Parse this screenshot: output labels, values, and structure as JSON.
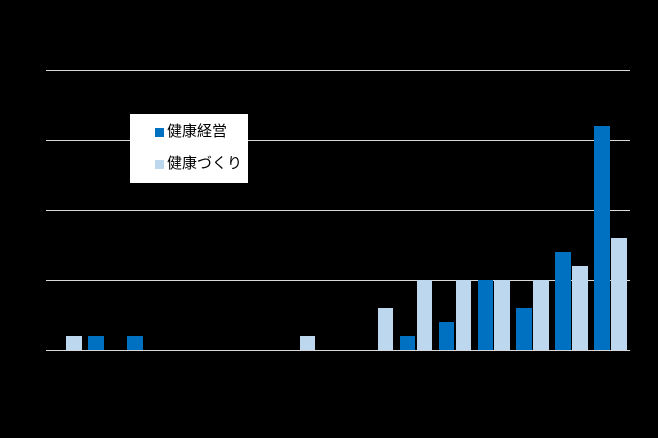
{
  "chart_data": {
    "type": "bar",
    "title": "",
    "xlabel": "",
    "ylabel": "",
    "categories": [
      "",
      "",
      "",
      "",
      "",
      "",
      "",
      "",
      "",
      "",
      "",
      "",
      "",
      "",
      ""
    ],
    "series": [
      {
        "name": "健康経営",
        "color": "#0070C0",
        "values": [
          0,
          1,
          1,
          0,
          0,
          0,
          0,
          0,
          0,
          1,
          2,
          5,
          3,
          7,
          16
        ]
      },
      {
        "name": "健康づくり",
        "color": "#BDD7EE",
        "values": [
          1,
          0,
          0,
          0,
          0,
          0,
          1,
          0,
          3,
          5,
          5,
          5,
          5,
          6,
          8
        ]
      }
    ],
    "ylim": [
      0,
      20
    ],
    "gridline_step": 5,
    "grid": true,
    "legend_position": "inside-upper-left",
    "colors": {
      "background": "#000000",
      "gridline": "#D9D9D9",
      "axis_line": "#D9D9D9",
      "legend_background": "#FFFFFF",
      "legend_text": "#000000"
    }
  }
}
